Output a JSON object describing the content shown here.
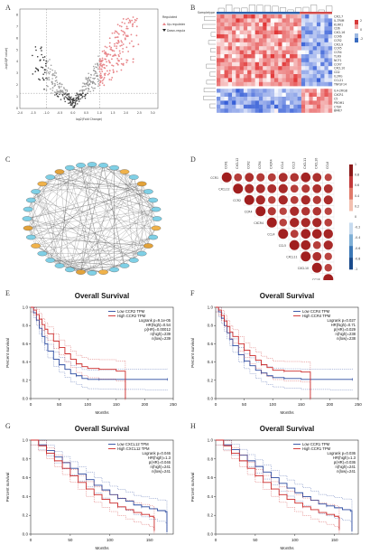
{
  "panels": {
    "A": {
      "label": "A",
      "xlabel": "log2(Fold Change)",
      "ylabel": "-log10(P value)",
      "xticks": [
        "-2.0",
        "-1.5",
        "-1.0",
        "-0.5",
        "0.0",
        "0.5",
        "1.0",
        "1.5",
        "2.0",
        "2.5",
        "3.0"
      ],
      "yticks": [
        "0",
        "1",
        "2",
        "3",
        "4",
        "5",
        "6",
        "7",
        "8"
      ],
      "legend": [
        "Regulated",
        "Up-regulated",
        "Down-regulated"
      ],
      "colors": {
        "up": "#e8868a",
        "down": "#222222",
        "ns": "#999999"
      }
    },
    "B": {
      "label": "B",
      "group_label": "Sampletype",
      "genes": [
        "CXCL7",
        "IL-TRIM",
        "KLRK1",
        "CD6",
        "CXCL16",
        "CCR6",
        "CCR2",
        "CXCL9",
        "CCR5",
        "CCR4",
        "TLR9",
        "NCF1",
        "CCR7",
        "CXCL10",
        "CD2",
        "IL2RG",
        "CCL21",
        "TNFSF14",
        "IL4-2RGB",
        "CXCR1",
        "C5",
        "PROM1",
        "CTSK",
        "BMK7"
      ],
      "legend_title": "",
      "legend_ticks": [
        "2",
        "0",
        "-2"
      ]
    },
    "C": {
      "label": "C"
    },
    "D": {
      "label": "D",
      "genes": [
        "CCR1",
        "CXCL12",
        "CCR2",
        "CCR4",
        "CXCR4",
        "CCL4",
        "CCL5",
        "CXCL11",
        "CXCL10",
        "CCL8"
      ],
      "scale": [
        "1",
        "0.8",
        "0.6",
        "0.4",
        "0.2",
        "0",
        "-0.2",
        "-0.4",
        "-0.6",
        "-0.8",
        "-1"
      ]
    },
    "E": {
      "label": "E",
      "chart_data": {
        "type": "line",
        "title": "Overall Survival",
        "xlabel": "Months",
        "ylabel": "Percent survival",
        "xlim": [
          0,
          250
        ],
        "ylim": [
          0,
          1
        ],
        "xticks": [
          "0",
          "50",
          "100",
          "150",
          "200",
          "250"
        ],
        "yticks": [
          "0.0",
          "0.2",
          "0.4",
          "0.6",
          "0.8",
          "1.0"
        ],
        "stats": [
          "Logrank p=9.1e-05",
          "HR(high)=0.54",
          "p(HR)=0.00012",
          "n(high)=239",
          "n(low)=239"
        ],
        "series": [
          {
            "name": "Low CCR2 TPM",
            "color": "#2b4aa0",
            "x": [
              0,
              5,
              10,
              15,
              20,
              25,
              30,
              40,
              50,
              60,
              70,
              80,
              90,
              100,
              120,
              150,
              200,
              240
            ],
            "y": [
              1,
              0.94,
              0.86,
              0.77,
              0.68,
              0.6,
              0.52,
              0.43,
              0.37,
              0.32,
              0.27,
              0.25,
              0.22,
              0.21,
              0.21,
              0.21,
              0.21,
              0.21
            ]
          },
          {
            "name": "High CCR2 TPM",
            "color": "#cc2a2a",
            "x": [
              0,
              5,
              10,
              15,
              20,
              25,
              30,
              40,
              50,
              60,
              70,
              80,
              90,
              100,
              120,
              150,
              165,
              166
            ],
            "y": [
              1,
              0.97,
              0.92,
              0.87,
              0.81,
              0.76,
              0.71,
              0.63,
              0.56,
              0.49,
              0.43,
              0.38,
              0.35,
              0.33,
              0.32,
              0.3,
              0.3,
              0
            ]
          }
        ]
      }
    },
    "F": {
      "label": "F",
      "chart_data": {
        "type": "line",
        "title": "Overall Survival",
        "xlabel": "Months",
        "ylabel": "Percent survival",
        "xlim": [
          0,
          250
        ],
        "ylim": [
          0,
          1
        ],
        "xticks": [
          "0",
          "50",
          "100",
          "150",
          "200",
          "250"
        ],
        "yticks": [
          "0.0",
          "0.2",
          "0.4",
          "0.6",
          "0.8",
          "1.0"
        ],
        "stats": [
          "Logrank p=0.027",
          "HR(high)=0.71",
          "p(HR)=0.029",
          "n(high)=238",
          "n(low)=238"
        ],
        "series": [
          {
            "name": "Low CCR4 TPM",
            "color": "#2b4aa0",
            "x": [
              0,
              5,
              10,
              15,
              20,
              25,
              30,
              40,
              50,
              60,
              70,
              80,
              90,
              100,
              120,
              150,
              200,
              240
            ],
            "y": [
              1,
              0.95,
              0.88,
              0.8,
              0.72,
              0.65,
              0.58,
              0.48,
              0.41,
              0.36,
              0.31,
              0.28,
              0.25,
              0.23,
              0.22,
              0.21,
              0.21,
              0.21
            ]
          },
          {
            "name": "High CCR4 TPM",
            "color": "#cc2a2a",
            "x": [
              0,
              5,
              10,
              15,
              20,
              25,
              30,
              40,
              50,
              60,
              70,
              80,
              90,
              100,
              120,
              150,
              165,
              166
            ],
            "y": [
              1,
              0.97,
              0.91,
              0.85,
              0.79,
              0.73,
              0.68,
              0.6,
              0.53,
              0.47,
              0.42,
              0.37,
              0.34,
              0.31,
              0.3,
              0.29,
              0.29,
              0
            ]
          }
        ]
      }
    },
    "G": {
      "label": "G",
      "chart_data": {
        "type": "line",
        "title": "Overall Survival",
        "xlabel": "Months",
        "ylabel": "Percent survival",
        "xlim": [
          0,
          180
        ],
        "ylim": [
          0,
          1
        ],
        "xticks": [
          "0",
          "50",
          "100",
          "150"
        ],
        "yticks": [
          "0.0",
          "0.2",
          "0.4",
          "0.6",
          "0.8",
          "1.0"
        ],
        "stats": [
          "Logrank p=0.046",
          "HR(high)=1.3",
          "p(HR)=0.046",
          "n(high)=241",
          "n(low)=241"
        ],
        "series": [
          {
            "name": "Low CXCL12 TPM",
            "color": "#2b4aa0",
            "x": [
              0,
              10,
              20,
              30,
              40,
              50,
              60,
              70,
              80,
              90,
              100,
              110,
              120,
              130,
              140,
              150,
              160,
              170,
              172
            ],
            "y": [
              1,
              0.95,
              0.89,
              0.82,
              0.76,
              0.7,
              0.64,
              0.58,
              0.52,
              0.47,
              0.42,
              0.38,
              0.35,
              0.31,
              0.29,
              0.27,
              0.25,
              0.24,
              0.02
            ]
          },
          {
            "name": "High CXCL12 TPM",
            "color": "#cc2a2a",
            "x": [
              0,
              10,
              20,
              30,
              40,
              50,
              60,
              70,
              80,
              90,
              100,
              110,
              120,
              130,
              140,
              150,
              155,
              156
            ],
            "y": [
              1,
              0.94,
              0.86,
              0.78,
              0.7,
              0.62,
              0.55,
              0.48,
              0.42,
              0.37,
              0.33,
              0.29,
              0.26,
              0.23,
              0.21,
              0.19,
              0.18,
              0.04
            ]
          }
        ]
      }
    },
    "H": {
      "label": "H",
      "chart_data": {
        "type": "line",
        "title": "Overall Survival",
        "xlabel": "Months",
        "ylabel": "Percent survival",
        "xlim": [
          0,
          180
        ],
        "ylim": [
          0,
          1
        ],
        "xticks": [
          "0",
          "50",
          "100",
          "150"
        ],
        "yticks": [
          "0.0",
          "0.2",
          "0.4",
          "0.6",
          "0.8",
          "1.0"
        ],
        "stats": [
          "Logrank p=0.036",
          "HR(high)=1.3",
          "p(HR)=0.036",
          "n(high)=241",
          "n(low)=241"
        ],
        "series": [
          {
            "name": "Low CCR1 TPM",
            "color": "#2b4aa0",
            "x": [
              0,
              10,
              20,
              30,
              40,
              50,
              60,
              70,
              80,
              90,
              100,
              110,
              120,
              130,
              140,
              150,
              160,
              170,
              172
            ],
            "y": [
              1,
              0.95,
              0.9,
              0.84,
              0.78,
              0.72,
              0.66,
              0.6,
              0.54,
              0.49,
              0.44,
              0.4,
              0.36,
              0.32,
              0.3,
              0.28,
              0.26,
              0.25,
              0.03
            ]
          },
          {
            "name": "High CCR1 TPM",
            "color": "#cc2a2a",
            "x": [
              0,
              10,
              20,
              30,
              40,
              50,
              60,
              70,
              80,
              90,
              100,
              110,
              120,
              130,
              140,
              150,
              155,
              156
            ],
            "y": [
              1,
              0.94,
              0.86,
              0.78,
              0.7,
              0.62,
              0.55,
              0.48,
              0.42,
              0.37,
              0.33,
              0.29,
              0.26,
              0.23,
              0.21,
              0.19,
              0.18,
              0.05
            ]
          }
        ]
      }
    }
  }
}
